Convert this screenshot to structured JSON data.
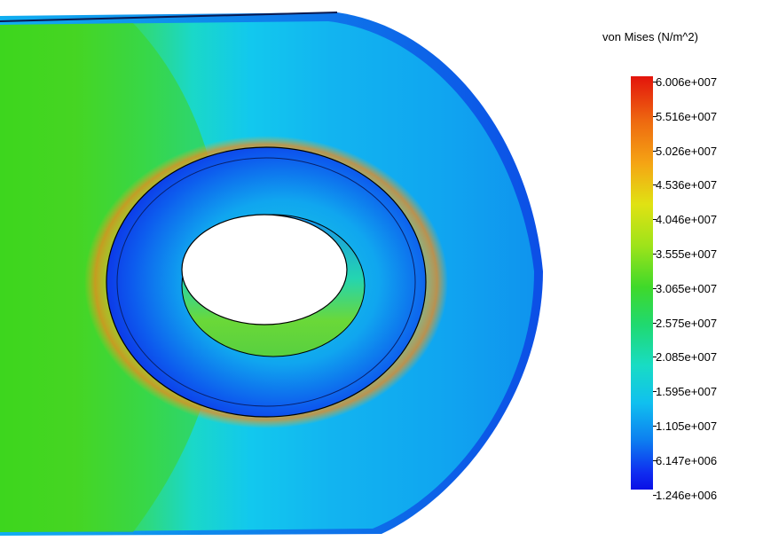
{
  "legend": {
    "title": "von Mises (N/m^2)",
    "labels": [
      "6.006e+007",
      "5.516e+007",
      "5.026e+007",
      "4.536e+007",
      "4.046e+007",
      "3.555e+007",
      "3.065e+007",
      "2.575e+007",
      "2.085e+007",
      "1.595e+007",
      "1.105e+007",
      "6.147e+006",
      "1.246e+006"
    ]
  },
  "colors": {
    "max_red": "#e3140c",
    "orange": "#f5a414",
    "yellow": "#e0e213",
    "green": "#3fd92a",
    "cyan": "#18dcc4",
    "light_blue": "#10c0ef",
    "min_blue": "#0a10e6"
  }
}
